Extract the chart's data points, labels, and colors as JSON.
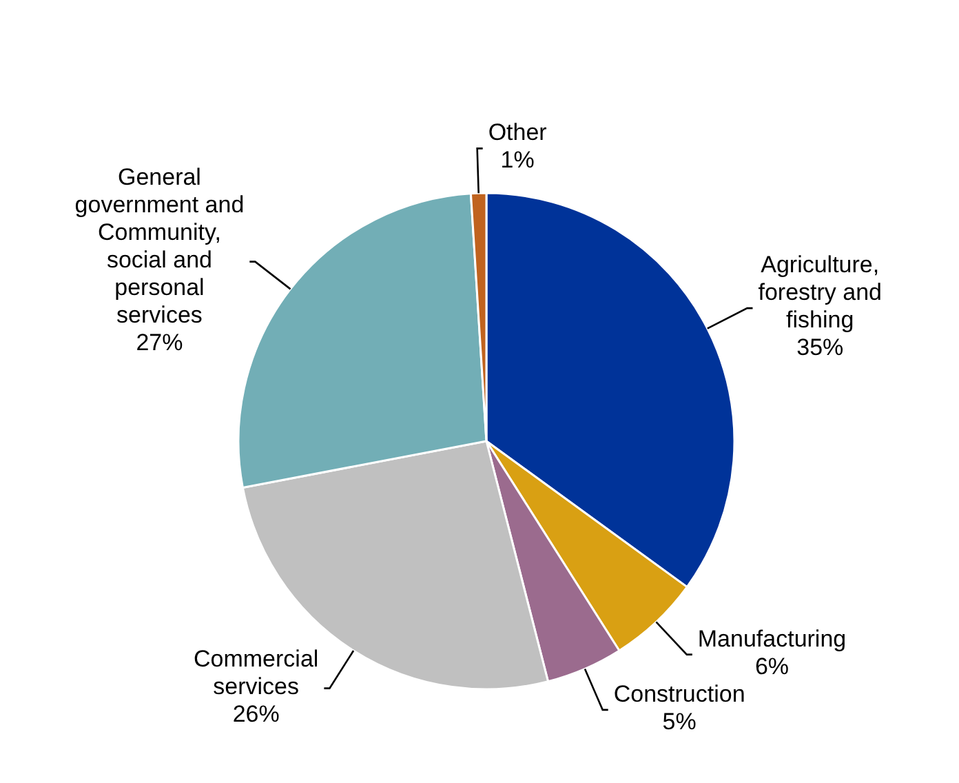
{
  "chart_data": {
    "type": "pie",
    "categories": [
      "Agriculture, forestry and fishing",
      "Manufacturing",
      "Construction",
      "Commercial services",
      "General government and Community, social and personal services",
      "Other"
    ],
    "values": [
      35,
      6,
      5,
      26,
      27,
      1
    ],
    "colors": [
      "#003399",
      "#d9a013",
      "#9b6b8e",
      "#c0c0c0",
      "#72aeb6",
      "#c0631f"
    ],
    "value_labels": [
      "35%",
      "6%",
      "5%",
      "26%",
      "27%",
      "1%"
    ]
  }
}
